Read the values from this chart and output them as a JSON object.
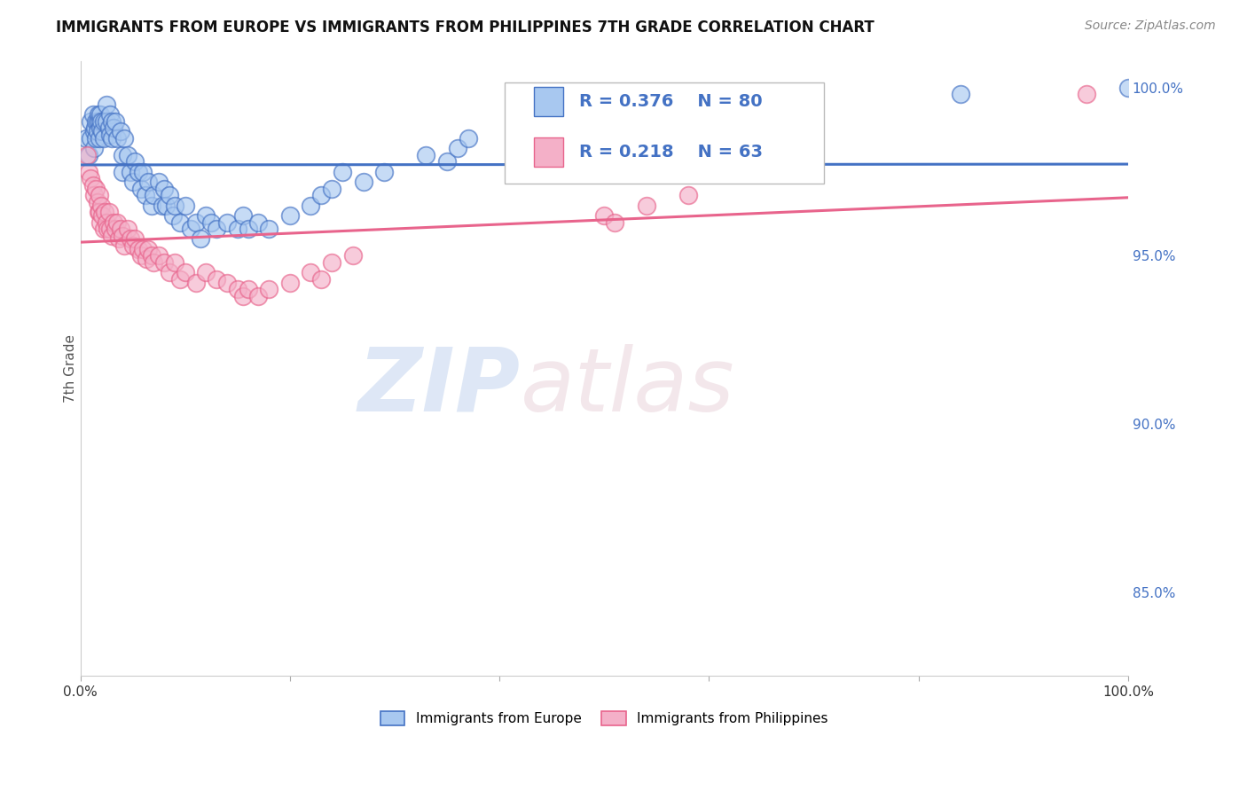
{
  "title": "IMMIGRANTS FROM EUROPE VS IMMIGRANTS FROM PHILIPPINES 7TH GRADE CORRELATION CHART",
  "source": "Source: ZipAtlas.com",
  "ylabel": "7th Grade",
  "right_ytick_labels": [
    "100.0%",
    "95.0%",
    "90.0%",
    "85.0%"
  ],
  "right_ytick_values": [
    1.0,
    0.95,
    0.9,
    0.85
  ],
  "xlim": [
    0.0,
    1.0
  ],
  "ylim": [
    0.825,
    1.008
  ],
  "blue_R": 0.376,
  "blue_N": 80,
  "pink_R": 0.218,
  "pink_N": 63,
  "blue_color": "#A8C8F0",
  "pink_color": "#F4B0C8",
  "blue_line_color": "#4472C4",
  "pink_line_color": "#E8648C",
  "legend_label_blue": "Immigrants from Europe",
  "legend_label_pink": "Immigrants from Philippines",
  "blue_scatter_x": [
    0.005,
    0.008,
    0.01,
    0.01,
    0.012,
    0.013,
    0.013,
    0.014,
    0.015,
    0.015,
    0.016,
    0.016,
    0.017,
    0.018,
    0.018,
    0.019,
    0.019,
    0.02,
    0.021,
    0.022,
    0.022,
    0.025,
    0.025,
    0.027,
    0.028,
    0.028,
    0.03,
    0.03,
    0.032,
    0.033,
    0.035,
    0.038,
    0.04,
    0.04,
    0.042,
    0.045,
    0.048,
    0.05,
    0.052,
    0.055,
    0.058,
    0.06,
    0.062,
    0.065,
    0.068,
    0.07,
    0.075,
    0.078,
    0.08,
    0.082,
    0.085,
    0.088,
    0.09,
    0.095,
    0.1,
    0.105,
    0.11,
    0.115,
    0.12,
    0.125,
    0.13,
    0.14,
    0.15,
    0.155,
    0.16,
    0.17,
    0.18,
    0.2,
    0.22,
    0.23,
    0.24,
    0.25,
    0.27,
    0.29,
    0.33,
    0.35,
    0.36,
    0.37,
    0.84,
    1.0
  ],
  "blue_scatter_y": [
    0.985,
    0.98,
    0.99,
    0.985,
    0.992,
    0.987,
    0.982,
    0.988,
    0.99,
    0.985,
    0.99,
    0.987,
    0.992,
    0.99,
    0.985,
    0.992,
    0.988,
    0.99,
    0.987,
    0.99,
    0.985,
    0.995,
    0.99,
    0.988,
    0.992,
    0.986,
    0.99,
    0.985,
    0.988,
    0.99,
    0.985,
    0.987,
    0.98,
    0.975,
    0.985,
    0.98,
    0.975,
    0.972,
    0.978,
    0.975,
    0.97,
    0.975,
    0.968,
    0.972,
    0.965,
    0.968,
    0.972,
    0.965,
    0.97,
    0.965,
    0.968,
    0.962,
    0.965,
    0.96,
    0.965,
    0.958,
    0.96,
    0.955,
    0.962,
    0.96,
    0.958,
    0.96,
    0.958,
    0.962,
    0.958,
    0.96,
    0.958,
    0.962,
    0.965,
    0.968,
    0.97,
    0.975,
    0.972,
    0.975,
    0.98,
    0.978,
    0.982,
    0.985,
    0.998,
    1.0
  ],
  "pink_scatter_x": [
    0.006,
    0.008,
    0.01,
    0.012,
    0.013,
    0.015,
    0.016,
    0.017,
    0.018,
    0.018,
    0.019,
    0.02,
    0.021,
    0.022,
    0.023,
    0.025,
    0.026,
    0.027,
    0.028,
    0.03,
    0.032,
    0.033,
    0.035,
    0.037,
    0.038,
    0.04,
    0.042,
    0.045,
    0.048,
    0.05,
    0.052,
    0.055,
    0.058,
    0.06,
    0.063,
    0.065,
    0.068,
    0.07,
    0.075,
    0.08,
    0.085,
    0.09,
    0.095,
    0.1,
    0.11,
    0.12,
    0.13,
    0.14,
    0.15,
    0.155,
    0.16,
    0.17,
    0.18,
    0.2,
    0.22,
    0.23,
    0.24,
    0.26,
    0.5,
    0.51,
    0.54,
    0.58,
    0.96
  ],
  "pink_scatter_y": [
    0.98,
    0.975,
    0.973,
    0.971,
    0.968,
    0.97,
    0.966,
    0.963,
    0.968,
    0.963,
    0.96,
    0.965,
    0.962,
    0.958,
    0.963,
    0.96,
    0.958,
    0.963,
    0.958,
    0.956,
    0.96,
    0.958,
    0.96,
    0.955,
    0.958,
    0.956,
    0.953,
    0.958,
    0.955,
    0.953,
    0.955,
    0.952,
    0.95,
    0.952,
    0.949,
    0.952,
    0.95,
    0.948,
    0.95,
    0.948,
    0.945,
    0.948,
    0.943,
    0.945,
    0.942,
    0.945,
    0.943,
    0.942,
    0.94,
    0.938,
    0.94,
    0.938,
    0.94,
    0.942,
    0.945,
    0.943,
    0.948,
    0.95,
    0.962,
    0.96,
    0.965,
    0.968,
    0.998
  ],
  "watermark_zip": "ZIP",
  "watermark_atlas": "atlas",
  "background_color": "#FFFFFF",
  "grid_color": "#DDDDDD"
}
